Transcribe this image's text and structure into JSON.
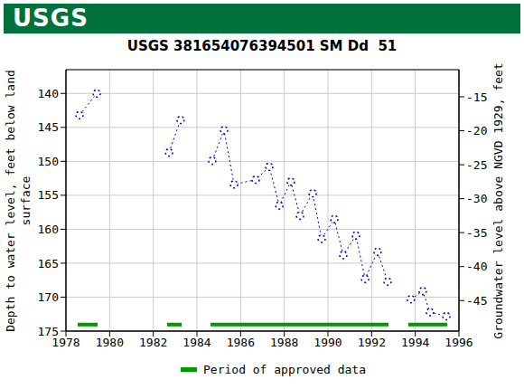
{
  "chart_data": {
    "type": "line",
    "title": "USGS 381654076394501 SM Dd  51",
    "logo": "USGS",
    "ylabel": "Depth to water level, feet below land surface",
    "y2label": "Groundwater level above NGVD 1929, feet",
    "x": [
      1978.62,
      1979.41,
      1981.0,
      1982.72,
      1983.25,
      1984.0,
      1984.7,
      1985.24,
      1985.7,
      1986.69,
      1987.31,
      1987.77,
      1988.3,
      1988.72,
      1989.3,
      1989.71,
      1990.29,
      1990.7,
      1991.28,
      1991.7,
      1992.27,
      1992.73,
      1993.3,
      1993.8,
      1994.34,
      1994.67,
      1995.42
    ],
    "series": [
      {
        "color": "#0000cc",
        "marker": "circle",
        "line_style": "dotted",
        "values": [
          143.2,
          140.0,
          null,
          148.7,
          143.9,
          null,
          149.9,
          145.4,
          153.4,
          152.7,
          150.8,
          156.5,
          153.0,
          158.0,
          154.7,
          161.4,
          158.5,
          163.8,
          160.9,
          167.3,
          163.3,
          167.7,
          null,
          170.3,
          169.1,
          172.2,
          172.8
        ]
      }
    ],
    "approved_periods": {
      "name": "Period of approved data",
      "color": "#009900",
      "ranges": [
        [
          1978.54,
          1979.45
        ],
        [
          1982.63,
          1983.3
        ],
        [
          1984.62,
          1992.77
        ],
        [
          1993.68,
          1995.46
        ]
      ]
    },
    "xlim": [
      1978,
      1996
    ],
    "xticks": [
      1978,
      1980,
      1982,
      1984,
      1986,
      1988,
      1990,
      1992,
      1994,
      1996
    ],
    "ylim": [
      136.5,
      175
    ],
    "yticks": [
      140,
      145,
      150,
      155,
      160,
      165,
      170,
      175
    ],
    "y2lim": [
      -49.5,
      -11
    ],
    "y2ticks": [
      -15,
      -20,
      -25,
      -30,
      -35,
      -40,
      -45
    ],
    "grid": true
  }
}
